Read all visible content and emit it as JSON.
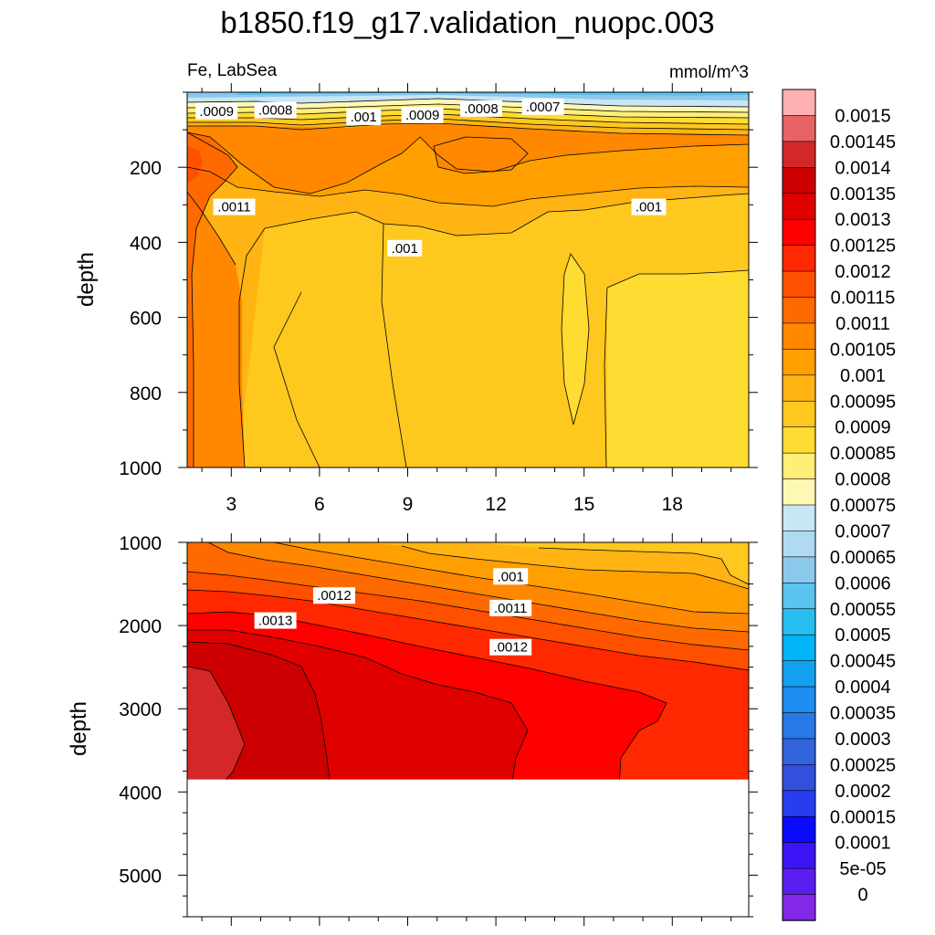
{
  "title": "b1850.f19_g17.validation_nuopc.003",
  "left_string": "Fe, LabSea",
  "right_string": "mmol/m^3",
  "chart_data": [
    {
      "type": "heatmap",
      "panel": "upper",
      "ylabel": "depth",
      "x_ticks": [
        3,
        6,
        9,
        12,
        15,
        18
      ],
      "x_tick_labels": [
        "3",
        "6",
        "9",
        "12",
        "15",
        "18"
      ],
      "xlim": [
        1.5,
        20.6
      ],
      "y_ticks": [
        200,
        400,
        600,
        800,
        1000
      ],
      "y_tick_labels": [
        "200",
        "400",
        "600",
        "800",
        "1000"
      ],
      "ylim": [
        0,
        1000
      ],
      "y_reversed": true,
      "contour_labels": [
        {
          "text": ".0009",
          "x": 2.5,
          "y": 53
        },
        {
          "text": ".0008",
          "x": 4.5,
          "y": 50
        },
        {
          "text": ".001",
          "x": 7.5,
          "y": 68
        },
        {
          "text": ".0009",
          "x": 9.5,
          "y": 63
        },
        {
          "text": ".0008",
          "x": 11.5,
          "y": 46
        },
        {
          "text": ".0007",
          "x": 13.6,
          "y": 41
        },
        {
          "text": ".0011",
          "x": 3.1,
          "y": 308
        },
        {
          "text": ".001",
          "x": 8.9,
          "y": 418
        },
        {
          "text": ".001",
          "x": 17.2,
          "y": 308
        }
      ]
    },
    {
      "type": "heatmap",
      "panel": "lower",
      "ylabel": "depth",
      "y_ticks": [
        1000,
        2000,
        3000,
        4000,
        5000
      ],
      "y_tick_labels": [
        "1000",
        "2000",
        "3000",
        "4000",
        "5000"
      ],
      "ylim": [
        1000,
        5500
      ],
      "y_reversed": true,
      "data_bottom_depth": 3850,
      "contour_labels": [
        {
          "text": ".0012",
          "x": 6.5,
          "y": 1650
        },
        {
          "text": ".0013",
          "x": 4.5,
          "y": 1950
        },
        {
          "text": ".001",
          "x": 12.5,
          "y": 1420
        },
        {
          "text": ".0011",
          "x": 12.5,
          "y": 1800
        },
        {
          "text": ".0012",
          "x": 12.5,
          "y": 2270
        }
      ]
    }
  ],
  "colorbar": {
    "levels": [
      "0.0015",
      "0.00145",
      "0.0014",
      "0.00135",
      "0.0013",
      "0.00125",
      "0.0012",
      "0.00115",
      "0.0011",
      "0.00105",
      "0.001",
      "0.00095",
      "0.0009",
      "0.00085",
      "0.0008",
      "0.00075",
      "0.0007",
      "0.00065",
      "0.0006",
      "0.00055",
      "0.0005",
      "0.00045",
      "0.0004",
      "0.00035",
      "0.0003",
      "0.00025",
      "0.0002",
      "0.00015",
      "0.0001",
      "5e-05",
      "0"
    ],
    "colors": [
      "#FFB1B1",
      "#E86464",
      "#D42828",
      "#CC0000",
      "#E00000",
      "#FF0000",
      "#FF2800",
      "#FF5000",
      "#FF6A00",
      "#FF8800",
      "#FFA000",
      "#FFB414",
      "#FFC81E",
      "#FFDC32",
      "#FFEE78",
      "#FFF8B4",
      "#C8E6F5",
      "#AFDAF0",
      "#8CC8EB",
      "#5AC3F0",
      "#28BEF0",
      "#00B4F5",
      "#14A0F0",
      "#1E8CF0",
      "#2878E6",
      "#3264DC",
      "#3250DC",
      "#283CF0",
      "#0A0AFF",
      "#3C14F5",
      "#5A1EF0",
      "#8228E6"
    ]
  }
}
